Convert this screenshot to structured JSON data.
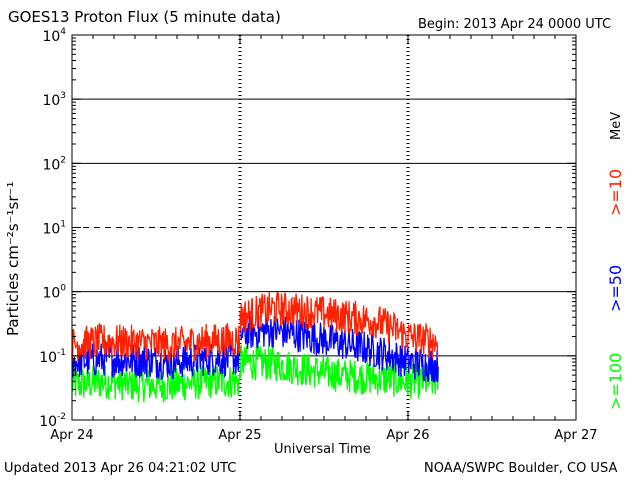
{
  "header": {
    "title": "GOES13 Proton Flux (5 minute data)",
    "begin": "Begin: 2013 Apr 24 0000 UTC"
  },
  "footer": {
    "updated": "Updated 2013 Apr 26 04:21:02 UTC",
    "credit": "NOAA/SWPC Boulder, CO USA"
  },
  "colors": {
    "ge10": "#ff2000",
    "ge50": "#0000ff",
    "ge100": "#00ff00",
    "axis": "#000000"
  },
  "chart_data": {
    "type": "line",
    "title": "GOES13 Proton Flux (5 minute data)",
    "xlabel": "Universal Time",
    "ylabel": "Particles cm⁻²s⁻¹sr⁻¹",
    "yscale": "log",
    "ylim": [
      0.01,
      10000
    ],
    "xlim_days": [
      0,
      3
    ],
    "x_ticks": [
      "Apr 24",
      "Apr 25",
      "Apr 26",
      "Apr 27"
    ],
    "y_ticks": [
      {
        "base": "10",
        "exp": "-2",
        "value": 0.01
      },
      {
        "base": "10",
        "exp": "-1",
        "value": 0.1
      },
      {
        "base": "10",
        "exp": "0",
        "value": 1
      },
      {
        "base": "10",
        "exp": "1",
        "value": 10
      },
      {
        "base": "10",
        "exp": "2",
        "value": 100
      },
      {
        "base": "10",
        "exp": "3",
        "value": 1000
      },
      {
        "base": "10",
        "exp": "4",
        "value": 10000
      }
    ],
    "solid_gridlines": [
      0.1,
      1,
      100,
      1000
    ],
    "dashed_gridlines": [
      10
    ],
    "day_markers_days": [
      1,
      2
    ],
    "units_label": "MeV",
    "data_end_days": 2.18,
    "series": [
      {
        "name": ">=10",
        "color": "#ff2000",
        "segments": [
          {
            "x_days": [
              0,
              0.2,
              0.4,
              0.6,
              0.8,
              1.0
            ],
            "values": [
              0.15,
              0.17,
              0.16,
              0.15,
              0.17,
              0.18
            ]
          },
          {
            "x_days": [
              1.0,
              1.2,
              1.4,
              1.6,
              1.8,
              2.0,
              2.18
            ],
            "values": [
              0.4,
              0.55,
              0.5,
              0.42,
              0.35,
              0.2,
              0.16
            ]
          }
        ]
      },
      {
        "name": ">=50",
        "color": "#0000ff",
        "segments": [
          {
            "x_days": [
              0,
              0.2,
              0.4,
              0.6,
              0.8,
              1.0
            ],
            "values": [
              0.08,
              0.09,
              0.085,
              0.08,
              0.09,
              0.09
            ]
          },
          {
            "x_days": [
              1.0,
              1.2,
              1.4,
              1.6,
              1.8,
              2.0,
              2.18
            ],
            "values": [
              0.22,
              0.25,
              0.2,
              0.16,
              0.12,
              0.08,
              0.07
            ]
          }
        ]
      },
      {
        "name": ">=100",
        "color": "#00ff00",
        "segments": [
          {
            "x_days": [
              0,
              0.2,
              0.4,
              0.6,
              0.8,
              1.0
            ],
            "values": [
              0.035,
              0.04,
              0.035,
              0.035,
              0.04,
              0.04
            ]
          },
          {
            "x_days": [
              1.0,
              1.2,
              1.4,
              1.6,
              1.8,
              2.0,
              2.18
            ],
            "values": [
              0.08,
              0.075,
              0.06,
              0.05,
              0.045,
              0.04,
              0.04
            ]
          }
        ]
      }
    ]
  }
}
